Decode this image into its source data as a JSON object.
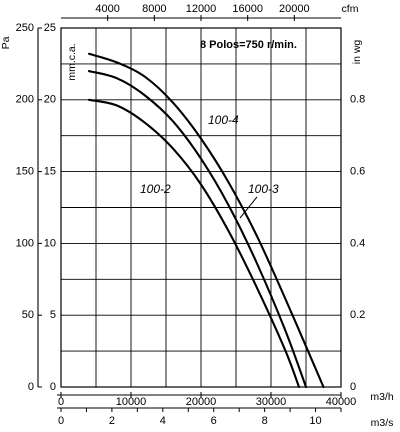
{
  "chart_data": {
    "type": "line",
    "info_label": "8 Polos=750 r/min.",
    "units": {
      "pa": "Pa",
      "mmca": "mm.c.a.",
      "inwg": "in wg",
      "cfm": "cfm",
      "m3h": "m3/h",
      "m3s": "m3/s"
    },
    "axes": {
      "pa": {
        "min": 0,
        "max": 250,
        "ticks": [
          "0",
          "50",
          "100",
          "150",
          "200",
          "250"
        ]
      },
      "mmca": {
        "min": 0,
        "max": 25,
        "ticks": [
          "0",
          "5",
          "10",
          "15",
          "20",
          "25"
        ]
      },
      "inwg": {
        "min": 0,
        "max": 1.0,
        "ticks": [
          "0",
          "0.2",
          "0.4",
          "0.6",
          "0.8"
        ]
      },
      "cfm": {
        "min": 0,
        "max": 24000,
        "ticks": [
          "4000",
          "8000",
          "12000",
          "16000",
          "20000"
        ]
      },
      "m3h": {
        "min": 0,
        "max": 40000,
        "ticks": [
          "0",
          "10000",
          "20000",
          "30000",
          "40000"
        ]
      },
      "m3s": {
        "min": 0,
        "max": 11,
        "ticks": [
          "0",
          "2",
          "4",
          "6",
          "8",
          "10"
        ]
      }
    },
    "grid": true,
    "x_unit": "m3/h",
    "y_unit": "mm.c.a.",
    "series": [
      {
        "name": "100-2",
        "x": [
          4000,
          8000,
          12000,
          16000,
          20000,
          24000,
          28000,
          32000,
          34000
        ],
        "y": [
          20.0,
          19.6,
          18.4,
          16.6,
          14.1,
          10.8,
          6.9,
          2.6,
          0.0
        ]
      },
      {
        "name": "100-3",
        "x": [
          4000,
          8000,
          12000,
          16000,
          20000,
          24000,
          28000,
          32000,
          35000
        ],
        "y": [
          22.0,
          21.5,
          20.3,
          18.5,
          15.9,
          12.6,
          8.6,
          4.0,
          0.0
        ]
      },
      {
        "name": "100-4",
        "x": [
          4000,
          8000,
          12000,
          16000,
          20000,
          24000,
          28000,
          32000,
          36000,
          37500
        ],
        "y": [
          23.2,
          22.6,
          21.6,
          19.8,
          17.3,
          14.2,
          10.5,
          6.2,
          1.7,
          0.0
        ]
      }
    ]
  }
}
